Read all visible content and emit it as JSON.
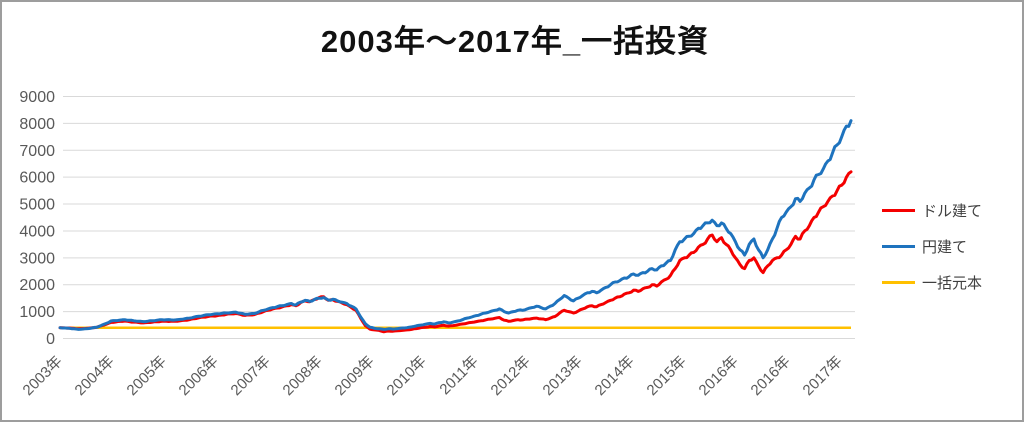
{
  "title": "2003年～2017年_一括投資",
  "colors": {
    "dollar": "#f40000",
    "yen": "#1e73be",
    "principal": "#ffc000",
    "grid": "#d9d9d9",
    "axis_text": "#595959",
    "frame_border": "#9d9d9d"
  },
  "chart_data": {
    "type": "line",
    "title": "2003年～2017年_一括投資",
    "xlabel": "",
    "ylabel": "",
    "ylim": [
      0,
      9000
    ],
    "yticks": [
      0,
      1000,
      2000,
      3000,
      4000,
      5000,
      6000,
      7000,
      8000,
      9000
    ],
    "grid": "horizontal",
    "legend_position": "right",
    "xtick_labels": [
      "2003年",
      "2004年",
      "2005年",
      "2006年",
      "2007年",
      "2008年",
      "2009年",
      "2010年",
      "2011年",
      "2012年",
      "2013年",
      "2014年",
      "2015年",
      "2016年",
      "2016年",
      "2017年"
    ],
    "x_range_note": "monthly values 2003-01 through 2017-04",
    "principal_value": 400,
    "series": [
      {
        "name": "ドル建て",
        "color": "#f40000",
        "values": [
          400,
          395,
          390,
          375,
          360,
          370,
          380,
          400,
          420,
          475,
          530,
          600,
          615,
          635,
          650,
          630,
          610,
          595,
          580,
          595,
          610,
          625,
          640,
          640,
          640,
          640,
          660,
          680,
          700,
          735,
          770,
          795,
          820,
          835,
          850,
          875,
          900,
          915,
          930,
          895,
          860,
          875,
          890,
          945,
          1000,
          1050,
          1100,
          1135,
          1170,
          1215,
          1260,
          1220,
          1330,
          1400,
          1370,
          1450,
          1520,
          1550,
          1420,
          1440,
          1380,
          1320,
          1260,
          1150,
          1050,
          750,
          480,
          350,
          320,
          300,
          250,
          280,
          270,
          290,
          300,
          320,
          340,
          370,
          400,
          420,
          450,
          430,
          470,
          490,
          460,
          480,
          510,
          540,
          570,
          600,
          630,
          660,
          690,
          720,
          750,
          780,
          680,
          640,
          670,
          700,
          690,
          720,
          740,
          760,
          730,
          700,
          760,
          820,
          950,
          1050,
          1000,
          950,
          1020,
          1100,
          1180,
          1220,
          1180,
          1260,
          1340,
          1420,
          1500,
          1550,
          1650,
          1700,
          1800,
          1750,
          1850,
          1900,
          2000,
          1950,
          2100,
          2200,
          2350,
          2600,
          2900,
          3000,
          3100,
          3200,
          3400,
          3500,
          3700,
          3850,
          3600,
          3750,
          3500,
          3300,
          3000,
          2750,
          2600,
          2900,
          3000,
          2700,
          2450,
          2700,
          2900,
          3000,
          3100,
          3300,
          3500,
          3800,
          3700,
          4000,
          4200,
          4500,
          4700,
          4900,
          5100,
          5300,
          5500,
          5700,
          6000,
          6200
        ]
      },
      {
        "name": "円建て",
        "color": "#1e73be",
        "values": [
          400,
          390,
          380,
          360,
          340,
          355,
          370,
          395,
          420,
          490,
          560,
          650,
          665,
          685,
          700,
          680,
          660,
          645,
          630,
          645,
          660,
          680,
          700,
          695,
          692,
          690,
          710,
          735,
          760,
          795,
          830,
          855,
          880,
          900,
          920,
          935,
          950,
          965,
          980,
          940,
          900,
          915,
          930,
          990,
          1050,
          1100,
          1150,
          1185,
          1220,
          1260,
          1300,
          1250,
          1350,
          1420,
          1380,
          1450,
          1500,
          1520,
          1430,
          1460,
          1400,
          1350,
          1300,
          1200,
          1100,
          800,
          550,
          420,
          380,
          360,
          340,
          360,
          350,
          370,
          390,
          400,
          430,
          470,
          500,
          530,
          560,
          540,
          590,
          620,
          580,
          610,
          650,
          700,
          760,
          800,
          850,
          900,
          950,
          1000,
          1050,
          1100,
          1000,
          950,
          1000,
          1050,
          1050,
          1100,
          1150,
          1200,
          1150,
          1100,
          1200,
          1300,
          1450,
          1600,
          1500,
          1400,
          1500,
          1600,
          1700,
          1750,
          1700,
          1800,
          1900,
          2000,
          2100,
          2150,
          2250,
          2300,
          2400,
          2350,
          2450,
          2500,
          2600,
          2550,
          2700,
          2800,
          2900,
          3300,
          3600,
          3700,
          3800,
          3900,
          4100,
          4200,
          4300,
          4400,
          4200,
          4300,
          4100,
          3900,
          3600,
          3300,
          3100,
          3500,
          3700,
          3300,
          3000,
          3300,
          3700,
          4100,
          4500,
          4700,
          4900,
          5200,
          5100,
          5400,
          5600,
          5900,
          6100,
          6300,
          6600,
          6900,
          7200,
          7500,
          7900,
          8100
        ]
      },
      {
        "name": "一括元本",
        "color": "#ffc000",
        "constant": 400
      }
    ]
  },
  "legend": {
    "items": [
      {
        "label": "ドル建て",
        "color": "#f40000"
      },
      {
        "label": "円建て",
        "color": "#1e73be"
      },
      {
        "label": "一括元本",
        "color": "#ffc000"
      }
    ]
  }
}
